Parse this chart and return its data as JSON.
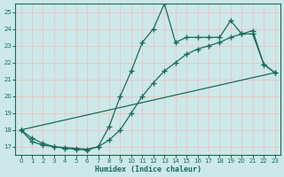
{
  "xlabel": "Humidex (Indice chaleur)",
  "bg_color": "#cce8e8",
  "grid_color": "#e8c8c8",
  "line_color": "#1a6b5a",
  "xlim": [
    -0.5,
    23.5
  ],
  "ylim": [
    16.5,
    25.5
  ],
  "xticks": [
    0,
    1,
    2,
    3,
    4,
    5,
    6,
    7,
    8,
    9,
    10,
    11,
    12,
    13,
    14,
    15,
    16,
    17,
    18,
    19,
    20,
    21,
    22,
    23
  ],
  "yticks": [
    17,
    18,
    19,
    20,
    21,
    22,
    23,
    24,
    25
  ],
  "series1_x": [
    0,
    1,
    2,
    3,
    4,
    5,
    6,
    7,
    8,
    9,
    10,
    11,
    12,
    13,
    14,
    15,
    16,
    17,
    18,
    19,
    20,
    21,
    22,
    23
  ],
  "series1_y": [
    18.0,
    17.5,
    17.2,
    17.0,
    16.9,
    16.85,
    16.8,
    17.0,
    18.2,
    20.0,
    21.5,
    23.2,
    24.0,
    25.5,
    23.2,
    23.5,
    23.5,
    23.5,
    23.5,
    24.5,
    23.7,
    23.7,
    21.9,
    21.4
  ],
  "series2_x": [
    0,
    23
  ],
  "series2_y": [
    18.0,
    21.4
  ],
  "series3_x": [
    0,
    1,
    2,
    3,
    4,
    5,
    6,
    7,
    8,
    9,
    10,
    11,
    12,
    13,
    14,
    15,
    16,
    17,
    18,
    19,
    20,
    21,
    22,
    23
  ],
  "series3_y": [
    18.0,
    17.3,
    17.1,
    17.0,
    16.95,
    16.9,
    16.85,
    17.0,
    17.4,
    18.0,
    19.0,
    20.0,
    20.8,
    21.5,
    22.0,
    22.5,
    22.8,
    23.0,
    23.2,
    23.5,
    23.7,
    23.9,
    21.9,
    21.4
  ],
  "marker_size": 2.5,
  "line_width": 0.9
}
